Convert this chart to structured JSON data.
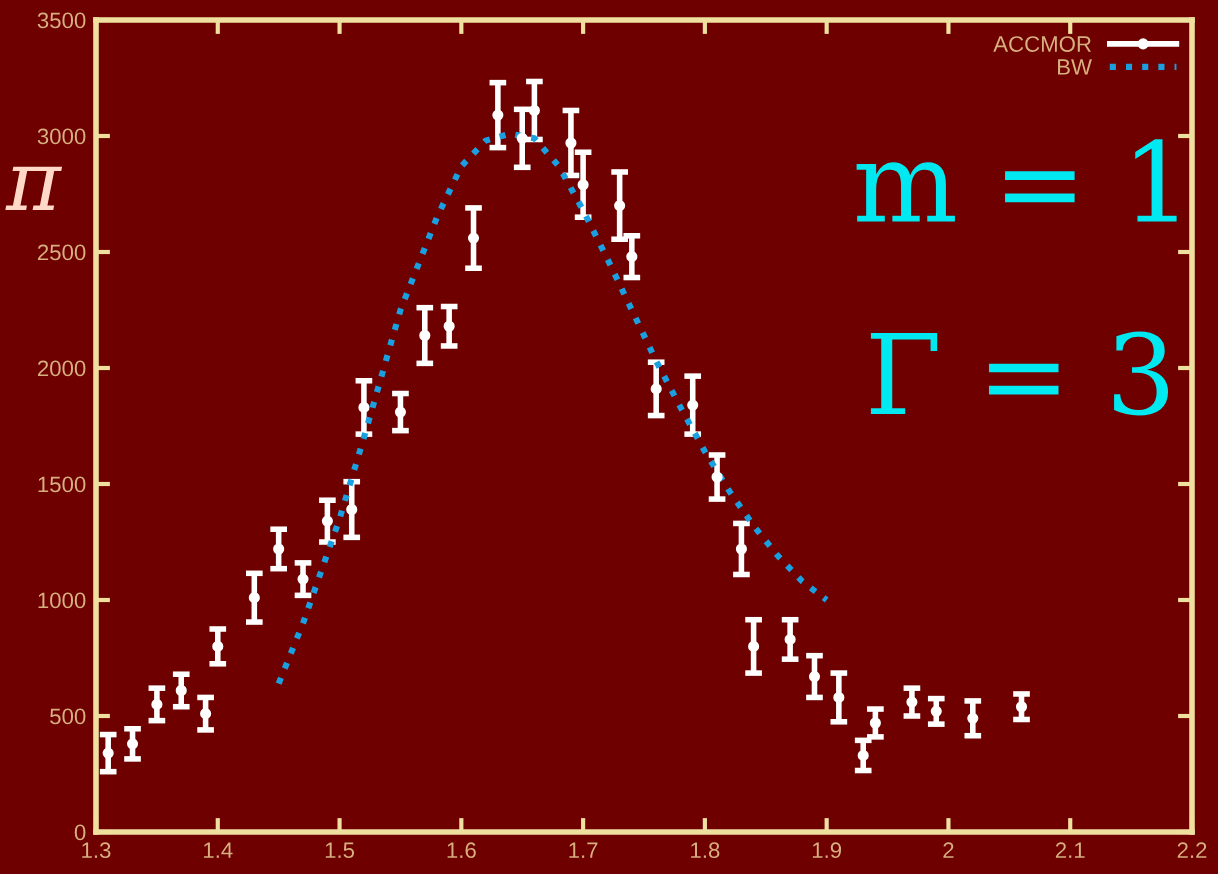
{
  "chart_data": {
    "type": "scatter",
    "xlim": [
      1.3,
      2.2
    ],
    "xticks": [
      1.3,
      1.4,
      1.5,
      1.6,
      1.7,
      1.8,
      1.9,
      2,
      2.1,
      2.2
    ],
    "ylim": [
      0,
      3500
    ],
    "yticks": [
      0,
      500,
      1000,
      1500,
      2000,
      2500,
      3000,
      3500
    ],
    "grid": false,
    "legend": "top right",
    "series": [
      {
        "name": "ACCMOR",
        "marker": "circle",
        "color": "#ffffff",
        "x": [
          1.31,
          1.33,
          1.35,
          1.37,
          1.39,
          1.4,
          1.43,
          1.45,
          1.47,
          1.49,
          1.51,
          1.52,
          1.55,
          1.57,
          1.59,
          1.61,
          1.63,
          1.65,
          1.66,
          1.69,
          1.7,
          1.73,
          1.74,
          1.76,
          1.79,
          1.81,
          1.83,
          1.84,
          1.87,
          1.89,
          1.91,
          1.93,
          1.94,
          1.97,
          1.99,
          2.02,
          2.06
        ],
        "values": [
          340,
          380,
          550,
          610,
          510,
          800,
          1010,
          1220,
          1090,
          1340,
          1390,
          1830,
          1810,
          2140,
          2180,
          2560,
          3090,
          2990,
          3110,
          2970,
          2790,
          2700,
          2480,
          1910,
          1840,
          1530,
          1220,
          800,
          830,
          670,
          580,
          330,
          470,
          560,
          520,
          490,
          540
        ],
        "errors": [
          80,
          65,
          70,
          70,
          70,
          75,
          105,
          85,
          70,
          90,
          120,
          115,
          80,
          120,
          85,
          130,
          140,
          125,
          125,
          140,
          140,
          145,
          90,
          115,
          125,
          95,
          110,
          115,
          85,
          90,
          105,
          65,
          60,
          60,
          55,
          75,
          55
        ]
      },
      {
        "name": "BW",
        "type": "line",
        "line_style": "dotted",
        "marker": "none",
        "color": "#1aa0e0",
        "x": [
          1.45,
          1.47,
          1.5,
          1.52,
          1.55,
          1.58,
          1.6,
          1.62,
          1.64,
          1.66,
          1.68,
          1.7,
          1.72,
          1.74,
          1.76,
          1.78,
          1.8,
          1.82,
          1.84,
          1.86,
          1.88,
          1.9
        ],
        "values": [
          640,
          900,
          1350,
          1700,
          2250,
          2650,
          2870,
          2980,
          3010,
          2990,
          2870,
          2680,
          2470,
          2250,
          2030,
          1830,
          1640,
          1470,
          1320,
          1190,
          1080,
          1000
        ]
      }
    ],
    "annotations": [
      "m = 1",
      "Γ = 3",
      "π"
    ]
  }
}
